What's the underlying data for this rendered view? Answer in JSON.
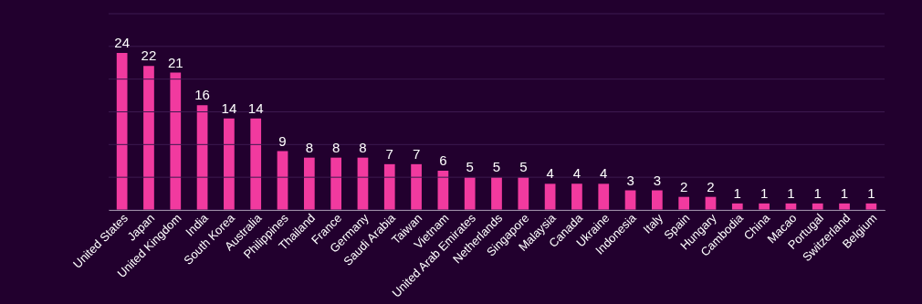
{
  "chart_data": {
    "type": "bar",
    "categories": [
      "United States",
      "Japan",
      "United Kingdom",
      "India",
      "South Korea",
      "Australia",
      "Philippines",
      "Thailand",
      "France",
      "Germany",
      "Saudi Arabia",
      "Taiwan",
      "Vietnam",
      "United Arab Emirates",
      "Netherlands",
      "Singapore",
      "Malaysia",
      "Canada",
      "Ukraine",
      "Indonesia",
      "Italy",
      "Spain",
      "Hungary",
      "Cambodia",
      "China",
      "Macao",
      "Portugal",
      "Switzerland",
      "Belgium"
    ],
    "values": [
      24,
      22,
      21,
      16,
      14,
      14,
      9,
      8,
      8,
      8,
      7,
      7,
      6,
      5,
      5,
      5,
      4,
      4,
      4,
      3,
      3,
      2,
      2,
      1,
      1,
      1,
      1,
      1,
      1
    ],
    "color": "#f13a9f",
    "ylim": [
      0,
      30
    ],
    "yticks": [
      {
        "value": 0,
        "label": null
      },
      {
        "value": 5,
        "label": null
      },
      {
        "value": 10,
        "label": null
      },
      {
        "value": 15,
        "label": null
      },
      {
        "value": 20,
        "label": null
      },
      {
        "value": 25,
        "label": null
      },
      {
        "value": 30,
        "label": null
      }
    ],
    "grid": "y",
    "tick_labels": "x",
    "data_labels": true
  }
}
